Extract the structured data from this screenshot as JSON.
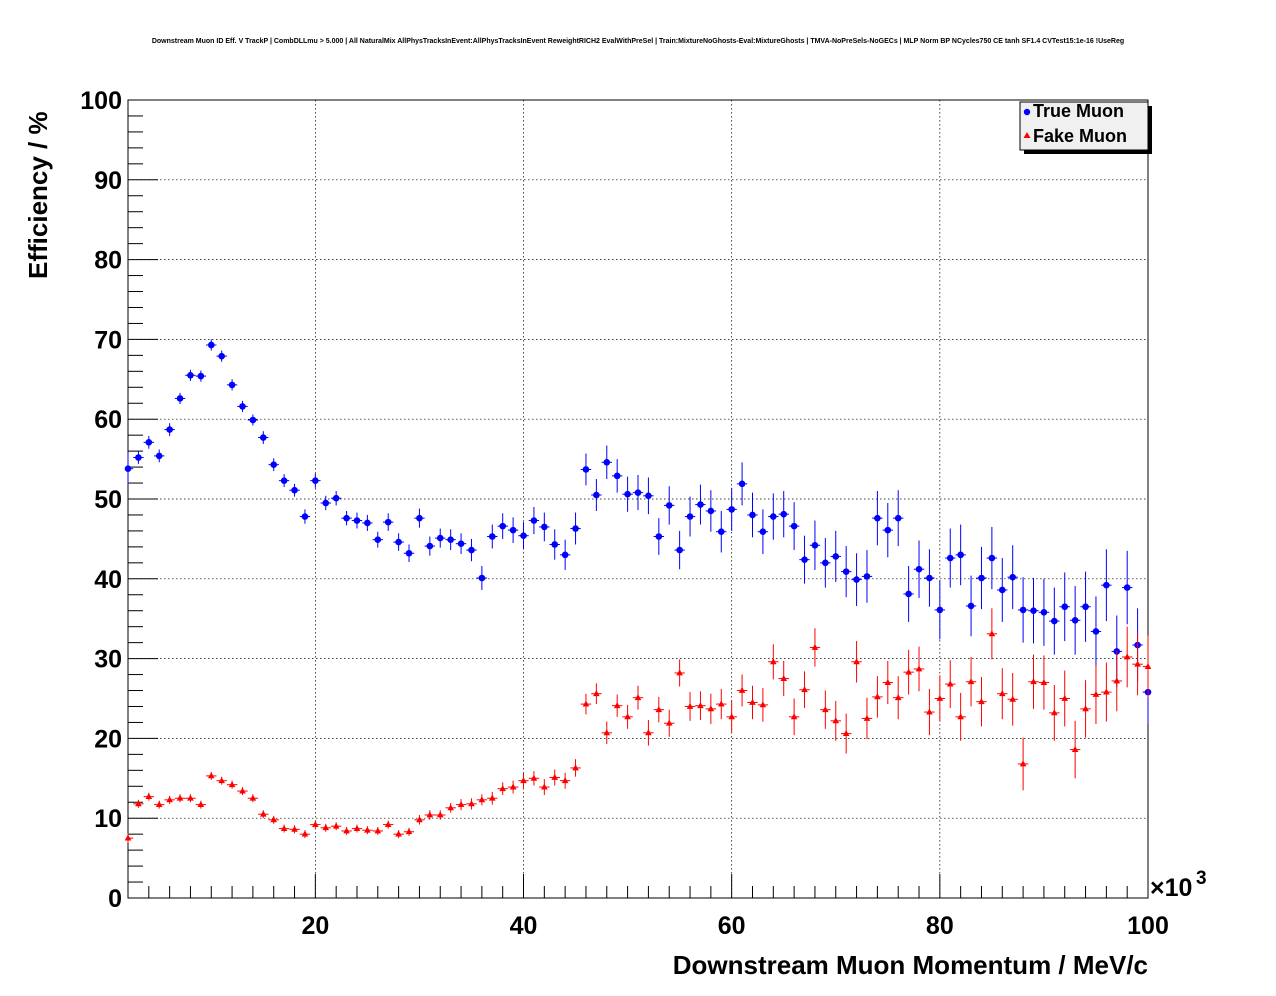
{
  "chart_data": {
    "type": "scatter",
    "title": "Downstream Muon ID Eff. V TrackP | CombDLLmu > 5.000 | All NaturalMix AllPhysTracksInEvent:AllPhysTracksInEvent ReweightRICH2 EvalWithPreSel | Train:MixtureNoGhosts-Eval:MixtureGhosts | TMVA-NoPreSels-NoGECs | MLP Norm BP NCycles750 CE tanh SF1.4 CVTest15:1e-16 !UseReg",
    "xlabel": "Downstream Muon Momentum / MeV/c",
    "ylabel": "Efficiency / %",
    "x_multiplier_label": "×10",
    "x_multiplier_exp": "3",
    "xlim": [
      2,
      100
    ],
    "ylim": [
      0,
      100
    ],
    "x_ticks": [
      20,
      40,
      60,
      80,
      100
    ],
    "y_ticks": [
      0,
      10,
      20,
      30,
      40,
      50,
      60,
      70,
      80,
      90,
      100
    ],
    "grid": true,
    "legend_position": "top-right",
    "bin_width": 1,
    "x_start": 2,
    "series": [
      {
        "name": "True Muon",
        "color": "#0000ff",
        "marker": "circle",
        "values": [
          53.8,
          55.2,
          57.1,
          55.4,
          58.7,
          62.6,
          65.5,
          65.4,
          69.3,
          67.9,
          64.3,
          61.6,
          59.9,
          57.7,
          54.3,
          52.3,
          51.1,
          47.8,
          52.3,
          49.5,
          50.1,
          47.6,
          47.3,
          47.0,
          44.9,
          47.1,
          44.6,
          43.2,
          47.6,
          44.1,
          45.1,
          44.9,
          44.4,
          43.6,
          40.1,
          45.3,
          46.6,
          46.1,
          45.4,
          47.3,
          46.5,
          44.3,
          43.0,
          46.3,
          53.7,
          50.5,
          54.6,
          52.9,
          50.6,
          50.8,
          50.4,
          45.3,
          49.2,
          43.6,
          47.8,
          49.3,
          48.5,
          45.9,
          48.7,
          51.9,
          48.0,
          45.9,
          47.8,
          48.1,
          46.6,
          42.4,
          44.2,
          42.0,
          42.8,
          40.9,
          39.9,
          40.3,
          47.6,
          46.1,
          47.6,
          38.1,
          41.2,
          40.1,
          36.1,
          42.6,
          43.0,
          36.6,
          40.1,
          42.6,
          38.6,
          40.2,
          36.1,
          36.0,
          35.8,
          34.7,
          36.5,
          34.8,
          36.5,
          33.4,
          39.2,
          30.9,
          38.9,
          31.7,
          25.8
        ],
        "errors": [
          2.0,
          0.8,
          0.8,
          0.8,
          0.8,
          0.7,
          0.7,
          0.7,
          0.7,
          0.7,
          0.7,
          0.7,
          0.7,
          0.8,
          0.8,
          0.8,
          0.8,
          0.9,
          0.9,
          0.9,
          0.9,
          0.9,
          1.0,
          1.0,
          1.0,
          1.1,
          1.1,
          1.1,
          1.2,
          1.2,
          1.2,
          1.3,
          1.3,
          1.4,
          1.5,
          1.5,
          1.6,
          1.6,
          1.7,
          1.7,
          1.8,
          1.9,
          1.9,
          2.0,
          2.0,
          2.0,
          2.1,
          2.1,
          2.2,
          2.2,
          2.3,
          2.3,
          2.4,
          2.4,
          2.5,
          2.5,
          2.6,
          2.6,
          2.7,
          2.7,
          2.8,
          2.8,
          2.9,
          2.9,
          3.0,
          3.0,
          3.1,
          3.1,
          3.2,
          3.2,
          3.3,
          3.3,
          3.4,
          3.4,
          3.5,
          3.5,
          3.6,
          3.6,
          3.7,
          3.7,
          3.8,
          3.8,
          3.9,
          3.9,
          4.0,
          4.0,
          4.1,
          4.1,
          4.2,
          4.2,
          4.3,
          4.3,
          4.4,
          4.4,
          4.5,
          4.5,
          4.6,
          4.6,
          4.0
        ]
      },
      {
        "name": "Fake Muon",
        "color": "#ff0000",
        "marker": "triangle",
        "values": [
          7.5,
          11.8,
          12.7,
          11.7,
          12.3,
          12.5,
          12.5,
          11.7,
          15.3,
          14.7,
          14.2,
          13.4,
          12.5,
          10.5,
          9.8,
          8.7,
          8.6,
          8.0,
          9.2,
          8.8,
          9.0,
          8.4,
          8.7,
          8.5,
          8.4,
          9.2,
          8.0,
          8.3,
          9.8,
          10.4,
          10.4,
          11.3,
          11.7,
          11.8,
          12.3,
          12.5,
          13.7,
          13.9,
          14.7,
          15.0,
          13.9,
          15.1,
          14.7,
          16.3,
          24.3,
          25.6,
          20.7,
          24.1,
          22.7,
          25.1,
          20.7,
          23.6,
          21.9,
          28.2,
          24.0,
          24.1,
          23.7,
          24.3,
          22.7,
          26.0,
          24.5,
          24.2,
          29.6,
          27.5,
          22.7,
          26.1,
          31.4,
          23.6,
          22.2,
          20.6,
          29.6,
          22.5,
          25.2,
          27.0,
          25.1,
          28.3,
          28.7,
          23.3,
          25.0,
          26.8,
          22.7,
          27.1,
          24.6,
          33.1,
          25.6,
          24.9,
          16.8,
          27.1,
          27.0,
          23.2,
          25.0,
          18.6,
          23.7,
          25.5,
          25.8,
          27.2,
          30.2,
          29.3,
          29.0
        ],
        "errors": [
          0.6,
          0.5,
          0.5,
          0.5,
          0.5,
          0.5,
          0.5,
          0.5,
          0.5,
          0.5,
          0.5,
          0.5,
          0.5,
          0.5,
          0.5,
          0.5,
          0.5,
          0.5,
          0.5,
          0.5,
          0.5,
          0.5,
          0.5,
          0.5,
          0.5,
          0.5,
          0.5,
          0.5,
          0.6,
          0.6,
          0.6,
          0.6,
          0.7,
          0.7,
          0.7,
          0.8,
          0.8,
          0.8,
          0.9,
          0.9,
          1.0,
          1.0,
          1.0,
          1.1,
          1.3,
          1.3,
          1.4,
          1.4,
          1.5,
          1.5,
          1.6,
          1.6,
          1.7,
          1.7,
          1.8,
          1.8,
          1.9,
          1.9,
          2.0,
          2.0,
          2.1,
          2.1,
          2.2,
          2.2,
          2.3,
          2.3,
          2.4,
          2.4,
          2.5,
          2.5,
          2.6,
          2.6,
          2.6,
          2.7,
          2.7,
          2.8,
          2.8,
          2.9,
          2.9,
          3.0,
          3.0,
          3.1,
          3.1,
          3.2,
          3.2,
          3.3,
          3.3,
          3.4,
          3.4,
          3.5,
          3.5,
          3.6,
          3.6,
          3.7,
          3.7,
          3.8,
          3.8,
          3.9,
          3.9
        ]
      }
    ]
  }
}
